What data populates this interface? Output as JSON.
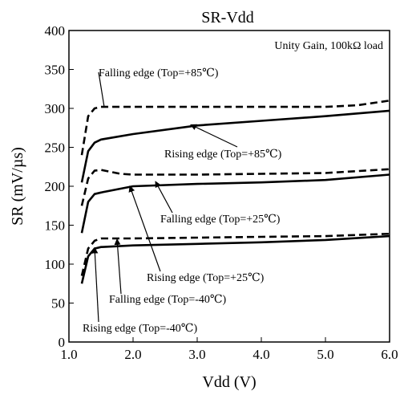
{
  "chart_data": {
    "type": "line",
    "title": "SR-Vdd",
    "xlabel": "Vdd (V)",
    "ylabel": "SR (mV/µs)",
    "xlim": [
      1.0,
      6.0
    ],
    "ylim": [
      0,
      400
    ],
    "xticks": [
      "1.0",
      "2.0",
      "3.0",
      "4.0",
      "5.0",
      "6.0"
    ],
    "yticks": [
      "0",
      "50",
      "100",
      "150",
      "200",
      "250",
      "300",
      "350",
      "400"
    ],
    "grid": false,
    "note": "Unity Gain, 100kΩ load",
    "series": [
      {
        "name": "Falling edge (Top=+85℃)",
        "style": "dashed",
        "x": [
          1.2,
          1.3,
          1.4,
          1.5,
          2.0,
          3.0,
          4.0,
          5.0,
          5.5,
          6.0
        ],
        "y": [
          240,
          290,
          300,
          302,
          302,
          302,
          302,
          302,
          304,
          310
        ]
      },
      {
        "name": "Rising edge (Top=+85℃)",
        "style": "solid",
        "x": [
          1.2,
          1.3,
          1.4,
          1.5,
          2.0,
          3.0,
          4.0,
          5.0,
          6.0
        ],
        "y": [
          205,
          245,
          256,
          260,
          267,
          278,
          284,
          290,
          297
        ]
      },
      {
        "name": "Falling edge (Top=+25℃)",
        "style": "dashed",
        "x": [
          1.2,
          1.3,
          1.4,
          1.5,
          1.8,
          2.0,
          3.0,
          4.0,
          5.0,
          6.0
        ],
        "y": [
          175,
          210,
          220,
          221,
          216,
          215,
          215,
          216,
          217,
          222
        ]
      },
      {
        "name": "Rising edge (Top=+25℃)",
        "style": "solid",
        "x": [
          1.2,
          1.3,
          1.4,
          1.5,
          2.0,
          3.0,
          4.0,
          5.0,
          6.0
        ],
        "y": [
          140,
          180,
          190,
          192,
          200,
          203,
          205,
          208,
          215
        ]
      },
      {
        "name": "Falling edge (Top=-40℃)",
        "style": "dashed",
        "x": [
          1.2,
          1.3,
          1.4,
          1.5,
          2.0,
          3.0,
          4.0,
          5.0,
          6.0
        ],
        "y": [
          85,
          120,
          130,
          133,
          133,
          134,
          135,
          136,
          139
        ]
      },
      {
        "name": "Rising edge (Top=-40℃)",
        "style": "solid",
        "x": [
          1.2,
          1.3,
          1.4,
          1.5,
          2.0,
          3.0,
          4.0,
          5.0,
          6.0
        ],
        "y": [
          75,
          110,
          120,
          122,
          124,
          126,
          128,
          131,
          136
        ]
      }
    ]
  }
}
